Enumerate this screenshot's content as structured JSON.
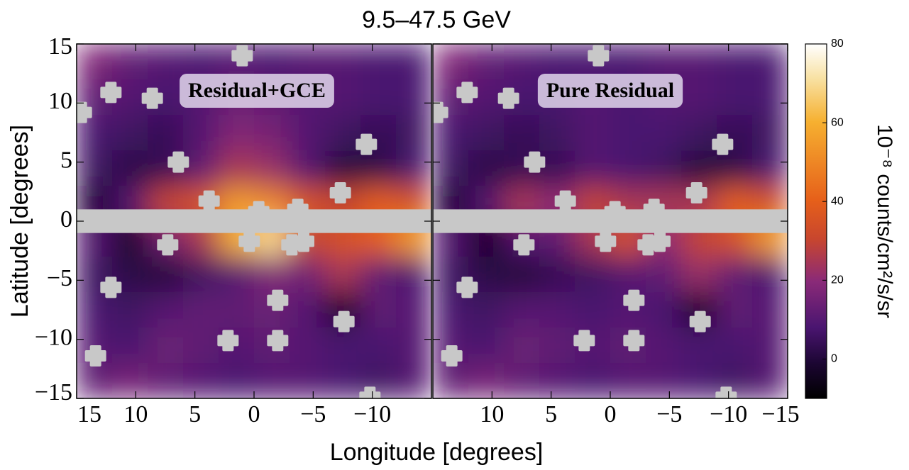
{
  "chart_data": {
    "type": "heatmap",
    "title": "9.5–47.5 GeV",
    "xlabel": "Longitude [degrees]",
    "ylabel": "Latitude [degrees]",
    "xlim": [
      15,
      -15
    ],
    "ylim": [
      -15,
      15
    ],
    "yticks": [
      15,
      10,
      5,
      0,
      {
        "value": -5,
        "label": "−5"
      },
      {
        "value": -10,
        "label": "−10"
      },
      {
        "value": -15,
        "label": "−15"
      }
    ],
    "colorbar": {
      "label": "10⁻⁸ counts/cm²/s/sr",
      "lim": [
        -10,
        80
      ],
      "ticks": [
        80,
        60,
        40,
        20,
        0
      ]
    },
    "mask_band": [
      -1,
      1
    ],
    "masks": [
      {
        "l": 14.6,
        "b": 9.2
      },
      {
        "l": 12.1,
        "b": 10.9
      },
      {
        "l": 8.6,
        "b": 10.4
      },
      {
        "l": 1.0,
        "b": 14.0
      },
      {
        "l": 6.4,
        "b": 5.0
      },
      {
        "l": 3.8,
        "b": 1.7
      },
      {
        "l": -9.5,
        "b": 6.5
      },
      {
        "l": -7.3,
        "b": 2.4
      },
      {
        "l": 7.3,
        "b": -2.0
      },
      {
        "l": 12.1,
        "b": -5.6
      },
      {
        "l": 13.4,
        "b": -11.4
      },
      {
        "l": -2.0,
        "b": -6.7
      },
      {
        "l": 2.2,
        "b": -10.1
      },
      {
        "l": -2.0,
        "b": -10.1
      },
      {
        "l": -7.6,
        "b": -8.5
      },
      {
        "l": -9.8,
        "b": -14.9
      },
      {
        "l": 0.4,
        "b": -1.7
      },
      {
        "l": -0.4,
        "b": 0.8
      },
      {
        "l": -3.7,
        "b": 1.0
      },
      {
        "l": -3.2,
        "b": -2.0
      },
      {
        "l": -4.2,
        "b": -1.7
      }
    ],
    "panels": [
      {
        "label": "Residual+GCE",
        "xticks": [
          15,
          10,
          5,
          0,
          {
            "value": -5,
            "label": "−5"
          },
          {
            "value": -10,
            "label": "−10"
          }
        ],
        "values": [
          [
            18,
            12,
            10,
            8,
            10,
            8,
            10,
            10,
            8,
            8
          ],
          [
            12,
            10,
            8,
            10,
            14,
            12,
            10,
            10,
            8,
            8
          ],
          [
            8,
            6,
            4,
            10,
            18,
            16,
            10,
            6,
            4,
            6
          ],
          [
            6,
            2,
            4,
            12,
            25,
            22,
            10,
            0,
            2,
            8
          ],
          [
            -2,
            10,
            30,
            35,
            55,
            50,
            35,
            30,
            40,
            35
          ],
          [
            10,
            -4,
            15,
            25,
            60,
            70,
            30,
            35,
            40,
            55
          ],
          [
            6,
            2,
            0,
            6,
            10,
            18,
            15,
            25,
            12,
            8
          ],
          [
            8,
            6,
            10,
            12,
            12,
            14,
            10,
            -4,
            12,
            10
          ],
          [
            10,
            8,
            14,
            12,
            10,
            12,
            10,
            8,
            8,
            10
          ],
          [
            12,
            16,
            12,
            10,
            8,
            10,
            10,
            8,
            6,
            10
          ]
        ]
      },
      {
        "label": "Pure Residual",
        "xticks": [
          10,
          5,
          0,
          {
            "value": -5,
            "label": "−5"
          },
          {
            "value": -10,
            "label": "−10"
          },
          {
            "value": -15,
            "label": "−15"
          }
        ],
        "values": [
          [
            18,
            12,
            10,
            8,
            8,
            8,
            10,
            10,
            8,
            8
          ],
          [
            12,
            10,
            8,
            8,
            10,
            8,
            10,
            10,
            8,
            8
          ],
          [
            8,
            6,
            4,
            6,
            10,
            8,
            8,
            6,
            4,
            6
          ],
          [
            6,
            2,
            4,
            4,
            10,
            8,
            6,
            0,
            2,
            8
          ],
          [
            -2,
            10,
            25,
            20,
            30,
            25,
            25,
            25,
            40,
            35
          ],
          [
            10,
            -4,
            10,
            12,
            25,
            35,
            20,
            30,
            35,
            55
          ],
          [
            6,
            2,
            0,
            4,
            6,
            10,
            12,
            22,
            12,
            8
          ],
          [
            8,
            6,
            10,
            10,
            8,
            10,
            8,
            -4,
            12,
            10
          ],
          [
            10,
            8,
            14,
            12,
            10,
            12,
            10,
            8,
            8,
            10
          ],
          [
            12,
            16,
            12,
            10,
            8,
            10,
            10,
            8,
            6,
            10
          ]
        ]
      }
    ]
  }
}
